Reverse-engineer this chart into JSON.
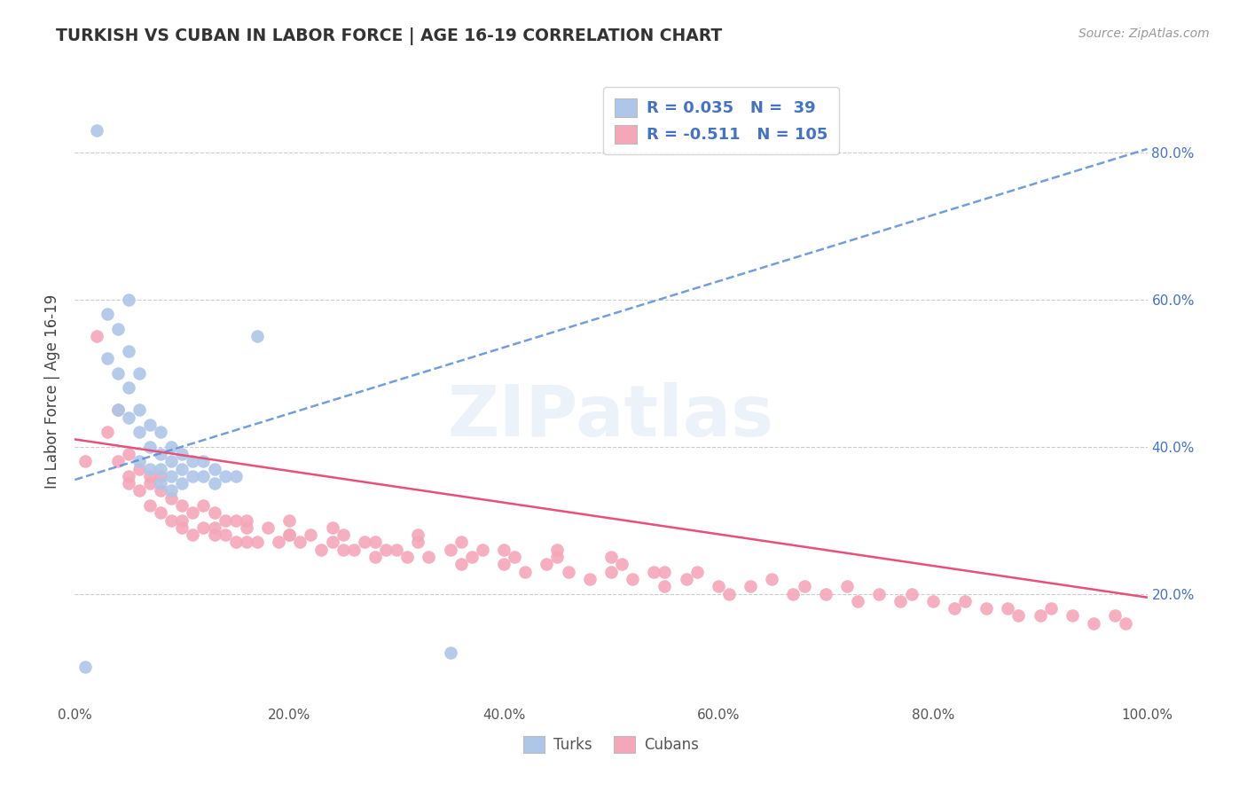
{
  "title": "TURKISH VS CUBAN IN LABOR FORCE | AGE 16-19 CORRELATION CHART",
  "source_text": "Source: ZipAtlas.com",
  "ylabel_label": "In Labor Force | Age 16-19",
  "x_tick_labels": [
    "0.0%",
    "20.0%",
    "40.0%",
    "60.0%",
    "80.0%",
    "100.0%"
  ],
  "x_tick_values": [
    0.0,
    0.2,
    0.4,
    0.6,
    0.8,
    1.0
  ],
  "y_tick_vals": [
    0.2,
    0.4,
    0.6,
    0.8
  ],
  "y_tick_labels_right": [
    "20.0%",
    "40.0%",
    "60.0%",
    "80.0%"
  ],
  "xlim": [
    0.0,
    1.0
  ],
  "ylim": [
    0.05,
    0.9
  ],
  "turks_color": "#aec6e8",
  "cubans_color": "#f4a7b9",
  "turks_line_color": "#5b8dd9",
  "cubans_line_color": "#e8507a",
  "turks_R": 0.035,
  "turks_N": 39,
  "cubans_R": -0.511,
  "cubans_N": 105,
  "turks_intercept": 0.355,
  "turks_slope": 0.45,
  "cubans_intercept": 0.41,
  "cubans_slope": -0.215,
  "background_color": "#ffffff",
  "grid_color": "#cccccc",
  "watermark": "ZIPatlas",
  "turks_x": [
    0.01,
    0.02,
    0.03,
    0.03,
    0.04,
    0.04,
    0.04,
    0.05,
    0.05,
    0.05,
    0.05,
    0.06,
    0.06,
    0.06,
    0.06,
    0.07,
    0.07,
    0.07,
    0.08,
    0.08,
    0.08,
    0.08,
    0.09,
    0.09,
    0.09,
    0.09,
    0.1,
    0.1,
    0.1,
    0.11,
    0.11,
    0.12,
    0.12,
    0.13,
    0.13,
    0.14,
    0.15,
    0.17,
    0.35
  ],
  "turks_y": [
    0.1,
    0.83,
    0.58,
    0.52,
    0.56,
    0.5,
    0.45,
    0.6,
    0.53,
    0.48,
    0.44,
    0.5,
    0.45,
    0.42,
    0.38,
    0.43,
    0.4,
    0.37,
    0.42,
    0.39,
    0.37,
    0.35,
    0.4,
    0.38,
    0.36,
    0.34,
    0.39,
    0.37,
    0.35,
    0.38,
    0.36,
    0.36,
    0.38,
    0.35,
    0.37,
    0.36,
    0.36,
    0.55,
    0.12
  ],
  "cubans_x": [
    0.01,
    0.02,
    0.03,
    0.04,
    0.04,
    0.05,
    0.05,
    0.06,
    0.06,
    0.07,
    0.07,
    0.08,
    0.08,
    0.08,
    0.09,
    0.09,
    0.1,
    0.1,
    0.11,
    0.11,
    0.12,
    0.12,
    0.13,
    0.13,
    0.14,
    0.14,
    0.15,
    0.15,
    0.16,
    0.16,
    0.17,
    0.18,
    0.19,
    0.2,
    0.2,
    0.21,
    0.22,
    0.23,
    0.24,
    0.25,
    0.25,
    0.26,
    0.27,
    0.28,
    0.29,
    0.3,
    0.31,
    0.32,
    0.33,
    0.35,
    0.36,
    0.37,
    0.38,
    0.4,
    0.41,
    0.42,
    0.44,
    0.45,
    0.46,
    0.48,
    0.5,
    0.51,
    0.52,
    0.54,
    0.55,
    0.57,
    0.58,
    0.6,
    0.61,
    0.63,
    0.65,
    0.67,
    0.68,
    0.7,
    0.72,
    0.73,
    0.75,
    0.77,
    0.78,
    0.8,
    0.82,
    0.83,
    0.85,
    0.87,
    0.88,
    0.9,
    0.91,
    0.93,
    0.95,
    0.97,
    0.98,
    0.05,
    0.07,
    0.1,
    0.13,
    0.16,
    0.2,
    0.24,
    0.28,
    0.32,
    0.36,
    0.4,
    0.45,
    0.5,
    0.55
  ],
  "cubans_y": [
    0.38,
    0.55,
    0.42,
    0.45,
    0.38,
    0.36,
    0.39,
    0.34,
    0.37,
    0.32,
    0.35,
    0.31,
    0.34,
    0.36,
    0.3,
    0.33,
    0.29,
    0.32,
    0.28,
    0.31,
    0.29,
    0.32,
    0.28,
    0.31,
    0.28,
    0.3,
    0.27,
    0.3,
    0.27,
    0.29,
    0.27,
    0.29,
    0.27,
    0.28,
    0.3,
    0.27,
    0.28,
    0.26,
    0.27,
    0.26,
    0.28,
    0.26,
    0.27,
    0.25,
    0.26,
    0.26,
    0.25,
    0.27,
    0.25,
    0.26,
    0.24,
    0.25,
    0.26,
    0.24,
    0.25,
    0.23,
    0.24,
    0.25,
    0.23,
    0.22,
    0.23,
    0.24,
    0.22,
    0.23,
    0.21,
    0.22,
    0.23,
    0.21,
    0.2,
    0.21,
    0.22,
    0.2,
    0.21,
    0.2,
    0.21,
    0.19,
    0.2,
    0.19,
    0.2,
    0.19,
    0.18,
    0.19,
    0.18,
    0.18,
    0.17,
    0.17,
    0.18,
    0.17,
    0.16,
    0.17,
    0.16,
    0.35,
    0.36,
    0.3,
    0.29,
    0.3,
    0.28,
    0.29,
    0.27,
    0.28,
    0.27,
    0.26,
    0.26,
    0.25,
    0.23
  ]
}
